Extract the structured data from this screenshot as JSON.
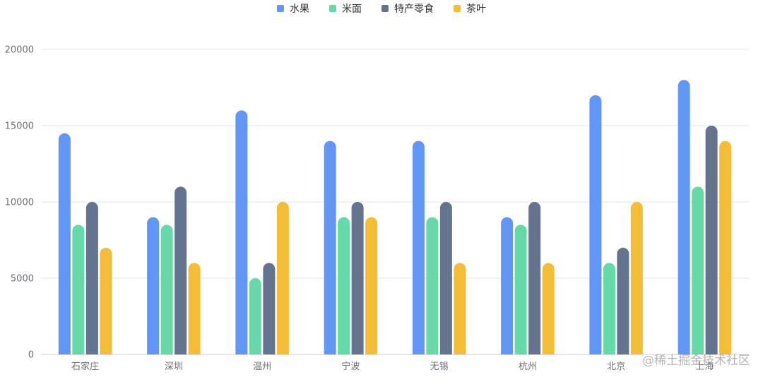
{
  "watermark": "@稀土掘金技术社区",
  "colors": {
    "水果": "#6296f4",
    "米面": "#67d8a8",
    "特产零食": "#64748e",
    "茶叶": "#f4bd38",
    "grid": "#e3e6ed",
    "axis_text": "#6e7079"
  },
  "chart_data": {
    "type": "bar",
    "categories": [
      "石家庄",
      "深圳",
      "温州",
      "宁波",
      "无锡",
      "杭州",
      "北京",
      "上海"
    ],
    "series": [
      {
        "name": "水果",
        "values": [
          14500,
          9000,
          16000,
          14000,
          14000,
          9000,
          17000,
          18000
        ]
      },
      {
        "name": "米面",
        "values": [
          8500,
          8500,
          5000,
          9000,
          9000,
          8500,
          6000,
          11000
        ]
      },
      {
        "name": "特产零食",
        "values": [
          10000,
          11000,
          6000,
          10000,
          10000,
          10000,
          7000,
          15000
        ]
      },
      {
        "name": "茶叶",
        "values": [
          7000,
          6000,
          10000,
          9000,
          6000,
          6000,
          10000,
          14000
        ]
      }
    ],
    "ylim": [
      0,
      20000
    ],
    "yticks": [
      0,
      5000,
      10000,
      15000,
      20000
    ],
    "legend": "top-center",
    "grid": true,
    "title": "",
    "xlabel": "",
    "ylabel": ""
  }
}
